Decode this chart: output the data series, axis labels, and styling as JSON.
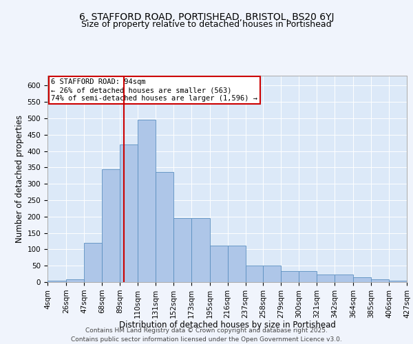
{
  "title_line1": "6, STAFFORD ROAD, PORTISHEAD, BRISTOL, BS20 6YJ",
  "title_line2": "Size of property relative to detached houses in Portishead",
  "xlabel": "Distribution of detached houses by size in Portishead",
  "ylabel": "Number of detached properties",
  "footer_line1": "Contains HM Land Registry data © Crown copyright and database right 2025.",
  "footer_line2": "Contains public sector information licensed under the Open Government Licence v3.0.",
  "annotation_line1": "6 STAFFORD ROAD: 94sqm",
  "annotation_line2": "← 26% of detached houses are smaller (563)",
  "annotation_line3": "74% of semi-detached houses are larger (1,596) →",
  "property_size": 94,
  "bar_edges": [
    4,
    26,
    47,
    68,
    89,
    110,
    131,
    152,
    173,
    195,
    216,
    237,
    258,
    279,
    300,
    321,
    342,
    364,
    385,
    406,
    427
  ],
  "bar_heights": [
    5,
    8,
    120,
    345,
    420,
    495,
    335,
    195,
    195,
    112,
    112,
    50,
    50,
    33,
    33,
    24,
    24,
    15,
    8,
    5,
    5
  ],
  "bar_color": "#aec6e8",
  "bar_edge_color": "#5a8fc0",
  "vline_color": "#cc0000",
  "vline_x": 94,
  "annotation_box_color": "#cc0000",
  "annotation_text_color": "#000000",
  "fig_background_color": "#f0f4fc",
  "ax_background_color": "#dce9f8",
  "ylim": [
    0,
    630
  ],
  "yticks": [
    0,
    50,
    100,
    150,
    200,
    250,
    300,
    350,
    400,
    450,
    500,
    550,
    600
  ],
  "title_fontsize": 10,
  "subtitle_fontsize": 9,
  "xlabel_fontsize": 8.5,
  "ylabel_fontsize": 8.5,
  "tick_fontsize": 7.5,
  "footer_fontsize": 6.5,
  "annotation_fontsize": 7.5
}
